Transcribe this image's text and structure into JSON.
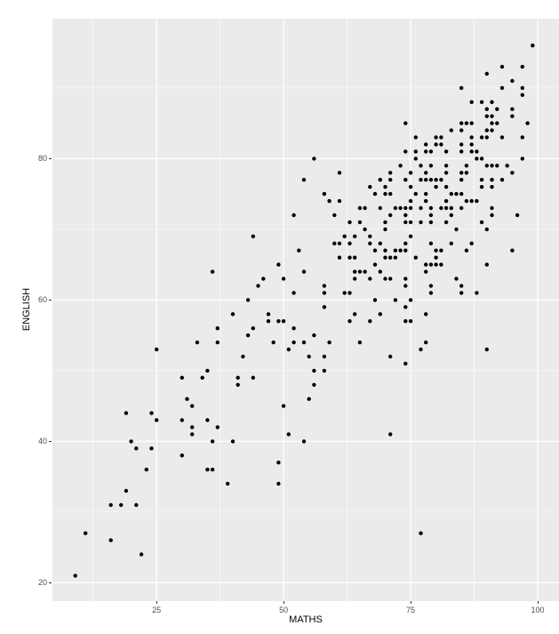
{
  "chart_data": {
    "type": "scatter",
    "title": "",
    "xlabel": "MATHS",
    "ylabel": "ENGLISH",
    "x_ticks": [
      25,
      50,
      75,
      100
    ],
    "y_ticks": [
      20,
      40,
      60,
      80
    ],
    "x_minor_ticks": [
      12.5,
      37.5,
      62.5,
      87.5
    ],
    "y_minor_ticks": [
      30,
      50,
      70,
      90
    ],
    "xlim": [
      4.5,
      104.2
    ],
    "ylim": [
      17.4,
      99.8
    ],
    "grid": "major+minor",
    "legend_position": "none",
    "panel_bg": "#EBEBEB",
    "grid_color": "#FFFFFF",
    "point_color": "#000000",
    "axis_text_color": "#4D4D4D",
    "points": [
      [
        99,
        96
      ],
      [
        93,
        93
      ],
      [
        97,
        93
      ],
      [
        90,
        92
      ],
      [
        95,
        91
      ],
      [
        85,
        90
      ],
      [
        93,
        90
      ],
      [
        97,
        90
      ],
      [
        97,
        89
      ],
      [
        87,
        88
      ],
      [
        89,
        88
      ],
      [
        91,
        88
      ],
      [
        90,
        87
      ],
      [
        92,
        87
      ],
      [
        95,
        87
      ],
      [
        90,
        86
      ],
      [
        91,
        86
      ],
      [
        95,
        86
      ],
      [
        74,
        85
      ],
      [
        85,
        85
      ],
      [
        86,
        85
      ],
      [
        87,
        85
      ],
      [
        91,
        85
      ],
      [
        92,
        85
      ],
      [
        98,
        85
      ],
      [
        83,
        84
      ],
      [
        85,
        84
      ],
      [
        90,
        84
      ],
      [
        91,
        84
      ],
      [
        76,
        83
      ],
      [
        80,
        83
      ],
      [
        81,
        83
      ],
      [
        87,
        83
      ],
      [
        89,
        83
      ],
      [
        90,
        83
      ],
      [
        93,
        83
      ],
      [
        97,
        83
      ],
      [
        78,
        82
      ],
      [
        80,
        82
      ],
      [
        81,
        82
      ],
      [
        85,
        82
      ],
      [
        87,
        82
      ],
      [
        74,
        81
      ],
      [
        76,
        81
      ],
      [
        78,
        81
      ],
      [
        79,
        81
      ],
      [
        82,
        81
      ],
      [
        85,
        81
      ],
      [
        87,
        81
      ],
      [
        88,
        81
      ],
      [
        56,
        80
      ],
      [
        76,
        80
      ],
      [
        88,
        80
      ],
      [
        89,
        80
      ],
      [
        97,
        80
      ],
      [
        73,
        79
      ],
      [
        77,
        79
      ],
      [
        79,
        79
      ],
      [
        82,
        79
      ],
      [
        86,
        79
      ],
      [
        90,
        79
      ],
      [
        91,
        79
      ],
      [
        92,
        79
      ],
      [
        94,
        79
      ],
      [
        61,
        78
      ],
      [
        71,
        78
      ],
      [
        75,
        78
      ],
      [
        78,
        78
      ],
      [
        82,
        78
      ],
      [
        85,
        78
      ],
      [
        86,
        78
      ],
      [
        95,
        78
      ],
      [
        54,
        77
      ],
      [
        69,
        77
      ],
      [
        71,
        77
      ],
      [
        74,
        77
      ],
      [
        77,
        77
      ],
      [
        78,
        77
      ],
      [
        79,
        77
      ],
      [
        80,
        77
      ],
      [
        81,
        77
      ],
      [
        85,
        77
      ],
      [
        89,
        77
      ],
      [
        91,
        77
      ],
      [
        93,
        77
      ],
      [
        67,
        76
      ],
      [
        70,
        76
      ],
      [
        75,
        76
      ],
      [
        80,
        76
      ],
      [
        82,
        76
      ],
      [
        89,
        76
      ],
      [
        91,
        76
      ],
      [
        58,
        75
      ],
      [
        68,
        75
      ],
      [
        70,
        75
      ],
      [
        71,
        75
      ],
      [
        76,
        75
      ],
      [
        78,
        75
      ],
      [
        83,
        75
      ],
      [
        84,
        75
      ],
      [
        85,
        75
      ],
      [
        59,
        74
      ],
      [
        61,
        74
      ],
      [
        75,
        74
      ],
      [
        78,
        74
      ],
      [
        82,
        74
      ],
      [
        86,
        74
      ],
      [
        87,
        74
      ],
      [
        88,
        74
      ],
      [
        65,
        73
      ],
      [
        66,
        73
      ],
      [
        69,
        73
      ],
      [
        72,
        73
      ],
      [
        73,
        73
      ],
      [
        74,
        73
      ],
      [
        75,
        73
      ],
      [
        77,
        73
      ],
      [
        79,
        73
      ],
      [
        81,
        73
      ],
      [
        82,
        73
      ],
      [
        83,
        73
      ],
      [
        85,
        73
      ],
      [
        91,
        73
      ],
      [
        52,
        72
      ],
      [
        60,
        72
      ],
      [
        71,
        72
      ],
      [
        74,
        72
      ],
      [
        79,
        72
      ],
      [
        83,
        72
      ],
      [
        91,
        72
      ],
      [
        96,
        72
      ],
      [
        63,
        71
      ],
      [
        65,
        71
      ],
      [
        70,
        71
      ],
      [
        74,
        71
      ],
      [
        75,
        71
      ],
      [
        77,
        71
      ],
      [
        79,
        71
      ],
      [
        82,
        71
      ],
      [
        89,
        71
      ],
      [
        66,
        70
      ],
      [
        70,
        70
      ],
      [
        84,
        70
      ],
      [
        90,
        70
      ],
      [
        44,
        69
      ],
      [
        62,
        69
      ],
      [
        64,
        69
      ],
      [
        67,
        69
      ],
      [
        75,
        69
      ],
      [
        60,
        68
      ],
      [
        61,
        68
      ],
      [
        63,
        68
      ],
      [
        67,
        68
      ],
      [
        69,
        68
      ],
      [
        74,
        68
      ],
      [
        79,
        68
      ],
      [
        83,
        68
      ],
      [
        87,
        68
      ],
      [
        53,
        67
      ],
      [
        68,
        67
      ],
      [
        70,
        67
      ],
      [
        72,
        67
      ],
      [
        73,
        67
      ],
      [
        74,
        67
      ],
      [
        80,
        67
      ],
      [
        81,
        67
      ],
      [
        86,
        67
      ],
      [
        95,
        67
      ],
      [
        61,
        66
      ],
      [
        63,
        66
      ],
      [
        64,
        66
      ],
      [
        70,
        66
      ],
      [
        71,
        66
      ],
      [
        72,
        66
      ],
      [
        76,
        66
      ],
      [
        80,
        66
      ],
      [
        49,
        65
      ],
      [
        68,
        65
      ],
      [
        78,
        65
      ],
      [
        79,
        65
      ],
      [
        80,
        65
      ],
      [
        81,
        65
      ],
      [
        90,
        65
      ],
      [
        36,
        64
      ],
      [
        54,
        64
      ],
      [
        64,
        64
      ],
      [
        65,
        64
      ],
      [
        66,
        64
      ],
      [
        69,
        64
      ],
      [
        78,
        64
      ],
      [
        46,
        63
      ],
      [
        50,
        63
      ],
      [
        64,
        63
      ],
      [
        67,
        63
      ],
      [
        70,
        63
      ],
      [
        71,
        63
      ],
      [
        74,
        63
      ],
      [
        84,
        63
      ],
      [
        45,
        62
      ],
      [
        58,
        62
      ],
      [
        74,
        62
      ],
      [
        79,
        62
      ],
      [
        85,
        62
      ],
      [
        52,
        61
      ],
      [
        58,
        61
      ],
      [
        62,
        61
      ],
      [
        63,
        61
      ],
      [
        79,
        61
      ],
      [
        85,
        61
      ],
      [
        88,
        61
      ],
      [
        43,
        60
      ],
      [
        68,
        60
      ],
      [
        72,
        60
      ],
      [
        75,
        60
      ],
      [
        58,
        59
      ],
      [
        74,
        59
      ],
      [
        40,
        58
      ],
      [
        47,
        58
      ],
      [
        64,
        58
      ],
      [
        69,
        58
      ],
      [
        78,
        58
      ],
      [
        47,
        57
      ],
      [
        49,
        57
      ],
      [
        50,
        57
      ],
      [
        63,
        57
      ],
      [
        67,
        57
      ],
      [
        74,
        57
      ],
      [
        75,
        57
      ],
      [
        37,
        56
      ],
      [
        44,
        56
      ],
      [
        52,
        56
      ],
      [
        43,
        55
      ],
      [
        56,
        55
      ],
      [
        33,
        54
      ],
      [
        37,
        54
      ],
      [
        48,
        54
      ],
      [
        52,
        54
      ],
      [
        54,
        54
      ],
      [
        59,
        54
      ],
      [
        65,
        54
      ],
      [
        78,
        54
      ],
      [
        25,
        53
      ],
      [
        51,
        53
      ],
      [
        77,
        53
      ],
      [
        90,
        53
      ],
      [
        42,
        52
      ],
      [
        55,
        52
      ],
      [
        58,
        52
      ],
      [
        71,
        52
      ],
      [
        74,
        51
      ],
      [
        35,
        50
      ],
      [
        56,
        50
      ],
      [
        58,
        50
      ],
      [
        30,
        49
      ],
      [
        34,
        49
      ],
      [
        41,
        49
      ],
      [
        44,
        49
      ],
      [
        41,
        48
      ],
      [
        56,
        48
      ],
      [
        31,
        46
      ],
      [
        55,
        46
      ],
      [
        32,
        45
      ],
      [
        50,
        45
      ],
      [
        19,
        44
      ],
      [
        24,
        44
      ],
      [
        25,
        43
      ],
      [
        30,
        43
      ],
      [
        35,
        43
      ],
      [
        32,
        42
      ],
      [
        37,
        42
      ],
      [
        32,
        41
      ],
      [
        51,
        41
      ],
      [
        71,
        41
      ],
      [
        20,
        40
      ],
      [
        36,
        40
      ],
      [
        40,
        40
      ],
      [
        54,
        40
      ],
      [
        21,
        39
      ],
      [
        24,
        39
      ],
      [
        30,
        38
      ],
      [
        49,
        37
      ],
      [
        23,
        36
      ],
      [
        35,
        36
      ],
      [
        36,
        36
      ],
      [
        39,
        34
      ],
      [
        49,
        34
      ],
      [
        19,
        33
      ],
      [
        16,
        31
      ],
      [
        18,
        31
      ],
      [
        21,
        31
      ],
      [
        11,
        27
      ],
      [
        77,
        27
      ],
      [
        16,
        26
      ],
      [
        22,
        24
      ],
      [
        9,
        21
      ]
    ]
  }
}
